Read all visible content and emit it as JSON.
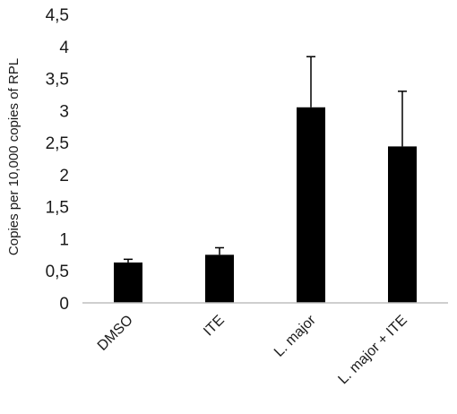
{
  "chart_data": {
    "type": "bar",
    "title": "",
    "xlabel": "",
    "ylabel": "Copies per 10,000 copies of RPL",
    "categories": [
      "DMSO",
      "ITE",
      "L. major",
      "L. major + ITE"
    ],
    "values": [
      0.63,
      0.75,
      3.05,
      2.44
    ],
    "error": [
      0.05,
      0.11,
      0.79,
      0.86
    ],
    "ylim": [
      0,
      4.5
    ],
    "yticks": [
      0,
      0.5,
      1,
      1.5,
      2,
      2.5,
      3,
      3.5,
      4,
      4.5
    ],
    "ytick_labels": [
      "0",
      "0,5",
      "1",
      "1,5",
      "2",
      "2,5",
      "3",
      "3,5",
      "4",
      "4,5"
    ],
    "grid": false,
    "legend": "none",
    "bar_color": "#000000",
    "axis_color": "#bfbfbf"
  }
}
